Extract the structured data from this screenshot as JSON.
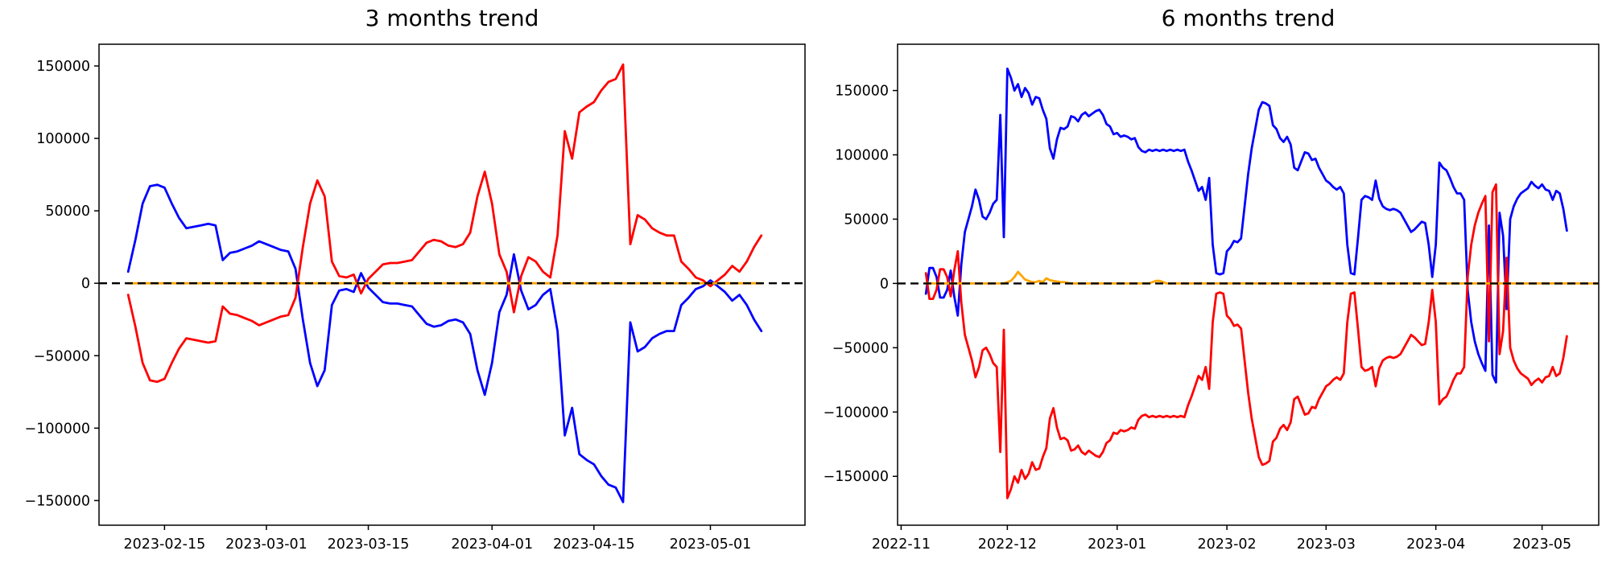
{
  "figure": {
    "background": "#ffffff",
    "accent_colors": {
      "blue": "#0000ff",
      "red": "#ff0000",
      "orange": "#ffa500",
      "zero_line": "#000000"
    }
  },
  "chart_data": [
    {
      "type": "line",
      "title": "3 months trend",
      "grid": false,
      "legend": null,
      "xlim": [
        "2023-02-06",
        "2023-05-14"
      ],
      "ylim": [
        -167000,
        165000
      ],
      "x_tick_labels": [
        "2023-02-15",
        "2023-03-01",
        "2023-03-15",
        "2023-04-01",
        "2023-04-15",
        "2023-05-01"
      ],
      "y_tick_labels": [
        "150000",
        "100000",
        "50000",
        "0",
        "−50000",
        "−100000",
        "−150000"
      ],
      "zero_line": {
        "y": 0,
        "style": "dashed",
        "color": "#000000"
      },
      "series_start_date": "2023-02-10",
      "series_cadence_days": 1,
      "series": [
        {
          "name": "blue",
          "color": "#0000ff",
          "values": [
            8000,
            30000,
            55000,
            67000,
            68000,
            66000,
            55000,
            45000,
            38000,
            39000,
            40000,
            41000,
            40000,
            16000,
            21000,
            22000,
            24000,
            26000,
            29000,
            27000,
            25000,
            23000,
            22000,
            10000,
            -25000,
            -55000,
            -71000,
            -60000,
            -15000,
            -5000,
            -4000,
            -6000,
            7000,
            -3000,
            -8000,
            -13000,
            -14000,
            -14000,
            -15000,
            -16000,
            -22000,
            -28000,
            -30000,
            -29000,
            -26000,
            -25000,
            -27000,
            -35000,
            -60000,
            -77000,
            -55000,
            -20000,
            -8000,
            20000,
            -5000,
            -18000,
            -15000,
            -8000,
            -4000,
            -33000,
            -105000,
            -86000,
            -118000,
            -122000,
            -125000,
            -133000,
            -139000,
            -141000,
            -151000,
            -27000,
            -47000,
            -44000,
            -38000,
            -35000,
            -33000,
            -33000,
            -15000,
            -10000,
            -4000,
            -2000,
            2000,
            -2000,
            -6000,
            -12000,
            -8000,
            -15000,
            -25000,
            -33000
          ]
        },
        {
          "name": "red",
          "color": "#ff0000",
          "values": [
            -8000,
            -30000,
            -55000,
            -67000,
            -68000,
            -66000,
            -55000,
            -45000,
            -38000,
            -39000,
            -40000,
            -41000,
            -40000,
            -16000,
            -21000,
            -22000,
            -24000,
            -26000,
            -29000,
            -27000,
            -25000,
            -23000,
            -22000,
            -10000,
            25000,
            55000,
            71000,
            60000,
            15000,
            5000,
            4000,
            6000,
            -7000,
            3000,
            8000,
            13000,
            14000,
            14000,
            15000,
            16000,
            22000,
            28000,
            30000,
            29000,
            26000,
            25000,
            27000,
            35000,
            60000,
            77000,
            55000,
            20000,
            8000,
            -20000,
            5000,
            18000,
            15000,
            8000,
            4000,
            33000,
            105000,
            86000,
            118000,
            122000,
            125000,
            133000,
            139000,
            141000,
            151000,
            27000,
            47000,
            44000,
            38000,
            35000,
            33000,
            33000,
            15000,
            10000,
            4000,
            2000,
            -2000,
            2000,
            6000,
            12000,
            8000,
            15000,
            25000,
            33000
          ]
        },
        {
          "name": "orange",
          "color": "#ffa500",
          "values": [
            0,
            0,
            0,
            0,
            0,
            0,
            0,
            0,
            0,
            0,
            0,
            0,
            0,
            0,
            0,
            0,
            0,
            0,
            0,
            0,
            0,
            0,
            0,
            0,
            0,
            0,
            0,
            0,
            0,
            0,
            0,
            0,
            0,
            0,
            0,
            0,
            0,
            0,
            0,
            0,
            0,
            0,
            0,
            0,
            0,
            0,
            0,
            0,
            0,
            0,
            0,
            0,
            0,
            0,
            0,
            0,
            0,
            0,
            0,
            0,
            0,
            0,
            0,
            0,
            0,
            0,
            0,
            0,
            0,
            0,
            0,
            0,
            0,
            0,
            0,
            0,
            0,
            0,
            0,
            0,
            0,
            0,
            0,
            0,
            0,
            0,
            0,
            0
          ]
        }
      ]
    },
    {
      "type": "line",
      "title": "6 months trend",
      "grid": false,
      "legend": null,
      "xlim": [
        "2022-10-31",
        "2023-05-17"
      ],
      "ylim": [
        -188000,
        186000
      ],
      "x_tick_labels": [
        "2022-11",
        "2022-12",
        "2023-01",
        "2023-02",
        "2023-03",
        "2023-04",
        "2023-05"
      ],
      "y_tick_labels": [
        "150000",
        "100000",
        "50000",
        "0",
        "−50000",
        "−100000",
        "−150000"
      ],
      "zero_line": {
        "y": 0,
        "style": "dashed",
        "color": "#000000"
      },
      "series_start_date": "2022-11-08",
      "series_cadence_days": 1,
      "series": [
        {
          "name": "blue",
          "color": "#0000ff",
          "values": [
            -8000,
            12000,
            12000,
            5000,
            -11000,
            -11000,
            -5000,
            10000,
            -10000,
            -25000,
            15000,
            40000,
            50000,
            60000,
            73000,
            65000,
            52000,
            50000,
            55000,
            62000,
            65000,
            131000,
            36000,
            167000,
            160000,
            150000,
            155000,
            145000,
            152000,
            148000,
            139000,
            145000,
            144000,
            135000,
            128000,
            105000,
            97000,
            112000,
            121000,
            120000,
            122000,
            130000,
            129000,
            126000,
            131000,
            133000,
            130000,
            132000,
            134000,
            135000,
            131000,
            124000,
            122000,
            116000,
            117000,
            114000,
            115000,
            114000,
            112000,
            113000,
            106000,
            103000,
            102000,
            104000,
            103000,
            104000,
            103000,
            104000,
            103000,
            104000,
            103000,
            104000,
            103000,
            104000,
            95000,
            88000,
            80000,
            72000,
            75000,
            65000,
            82000,
            30000,
            8000,
            7000,
            8000,
            25000,
            28000,
            33000,
            32000,
            35000,
            60000,
            85000,
            105000,
            120000,
            135000,
            141000,
            140000,
            138000,
            123000,
            120000,
            113000,
            110000,
            114000,
            108000,
            90000,
            88000,
            95000,
            102000,
            101000,
            96000,
            97000,
            90000,
            85000,
            80000,
            78000,
            75000,
            73000,
            75000,
            70000,
            30000,
            8000,
            7000,
            35000,
            65000,
            68000,
            67000,
            65000,
            80000,
            66000,
            60000,
            58000,
            57000,
            58000,
            57000,
            55000,
            50000,
            45000,
            40000,
            42000,
            45000,
            48000,
            47000,
            30000,
            5000,
            30000,
            94000,
            90000,
            88000,
            82000,
            75000,
            70000,
            70000,
            65000,
            -5000,
            -30000,
            -45000,
            -55000,
            -62000,
            -68000,
            45000,
            -71000,
            -77000,
            55000,
            37000,
            -20000,
            50000,
            60000,
            66000,
            70000,
            72000,
            74000,
            79000,
            76000,
            74000,
            77000,
            73000,
            72000,
            65000,
            72000,
            70000,
            58000,
            41000
          ]
        },
        {
          "name": "red",
          "color": "#ff0000",
          "values": [
            8000,
            -12000,
            -12000,
            -5000,
            11000,
            11000,
            5000,
            -10000,
            10000,
            25000,
            -15000,
            -40000,
            -50000,
            -60000,
            -73000,
            -65000,
            -52000,
            -50000,
            -55000,
            -62000,
            -65000,
            -131000,
            -36000,
            -167000,
            -160000,
            -150000,
            -155000,
            -145000,
            -152000,
            -148000,
            -139000,
            -145000,
            -144000,
            -135000,
            -128000,
            -105000,
            -97000,
            -112000,
            -121000,
            -120000,
            -122000,
            -130000,
            -129000,
            -126000,
            -131000,
            -133000,
            -130000,
            -132000,
            -134000,
            -135000,
            -131000,
            -124000,
            -122000,
            -116000,
            -117000,
            -114000,
            -115000,
            -114000,
            -112000,
            -113000,
            -106000,
            -103000,
            -102000,
            -104000,
            -103000,
            -104000,
            -103000,
            -104000,
            -103000,
            -104000,
            -103000,
            -104000,
            -103000,
            -104000,
            -95000,
            -88000,
            -80000,
            -72000,
            -75000,
            -65000,
            -82000,
            -30000,
            -8000,
            -7000,
            -8000,
            -25000,
            -28000,
            -33000,
            -32000,
            -35000,
            -60000,
            -85000,
            -105000,
            -120000,
            -135000,
            -141000,
            -140000,
            -138000,
            -123000,
            -120000,
            -113000,
            -110000,
            -114000,
            -108000,
            -90000,
            -88000,
            -95000,
            -102000,
            -101000,
            -96000,
            -97000,
            -90000,
            -85000,
            -80000,
            -78000,
            -75000,
            -73000,
            -75000,
            -70000,
            -30000,
            -8000,
            -7000,
            -35000,
            -65000,
            -68000,
            -67000,
            -65000,
            -80000,
            -66000,
            -60000,
            -58000,
            -57000,
            -58000,
            -57000,
            -55000,
            -50000,
            -45000,
            -40000,
            -42000,
            -45000,
            -48000,
            -47000,
            -30000,
            -5000,
            -30000,
            -94000,
            -90000,
            -88000,
            -82000,
            -75000,
            -70000,
            -70000,
            -65000,
            5000,
            30000,
            45000,
            55000,
            62000,
            68000,
            -45000,
            71000,
            77000,
            -55000,
            -37000,
            20000,
            -50000,
            -60000,
            -66000,
            -70000,
            -72000,
            -74000,
            -79000,
            -76000,
            -74000,
            -77000,
            -73000,
            -72000,
            -65000,
            -72000,
            -70000,
            -58000,
            -41000
          ]
        },
        {
          "name": "orange",
          "color": "#ffa500",
          "values": [
            0,
            0,
            0,
            0,
            0,
            0,
            0,
            0,
            0,
            0,
            0,
            0,
            0,
            0,
            0,
            0,
            0,
            0,
            0,
            0,
            0,
            0,
            0,
            1000,
            2000,
            5000,
            9000,
            6000,
            3000,
            2000,
            1000,
            1000,
            2000,
            1000,
            4000,
            2500,
            2000,
            1500,
            1000,
            1000,
            500,
            0,
            0,
            0,
            0,
            0,
            0,
            0,
            0,
            0,
            0,
            0,
            0,
            0,
            0,
            0,
            0,
            0,
            0,
            0,
            0,
            0,
            0,
            0,
            1000,
            2000,
            2000,
            1000,
            0,
            0,
            0,
            0,
            0,
            0,
            0,
            0,
            0,
            0,
            0,
            0,
            0,
            0,
            0,
            0,
            0,
            0,
            0,
            0,
            0,
            0,
            0,
            0,
            0,
            0,
            0,
            0,
            0,
            0,
            0,
            0,
            0,
            0,
            0,
            0,
            0,
            0,
            0,
            0,
            0,
            0,
            0,
            0,
            0,
            0,
            0,
            0,
            0,
            0,
            0,
            0,
            0,
            0,
            0,
            0,
            0,
            0,
            0,
            0,
            0,
            0,
            0,
            0,
            0,
            0,
            0,
            0,
            0,
            0,
            0,
            0,
            0,
            0,
            0,
            0,
            0,
            0,
            0,
            0,
            0,
            0,
            0,
            0,
            0,
            0,
            0,
            0,
            0,
            0,
            0,
            0,
            0,
            0,
            0,
            0,
            0,
            0,
            0,
            0,
            0,
            0,
            0,
            0,
            0,
            0,
            0,
            0,
            0,
            0,
            0,
            0,
            0,
            0,
            0,
            0,
            0,
            0,
            0,
            0,
            0,
            0,
            0
          ]
        }
      ]
    }
  ]
}
